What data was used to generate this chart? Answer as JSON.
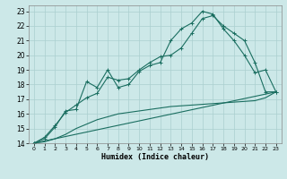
{
  "xlabel": "Humidex (Indice chaleur)",
  "bg_color": "#cce8e8",
  "grid_color": "#aacfcf",
  "line_color": "#1a6e60",
  "xlim": [
    -0.5,
    23.5
  ],
  "ylim": [
    14,
    23.4
  ],
  "xticks": [
    0,
    1,
    2,
    3,
    4,
    5,
    6,
    7,
    8,
    9,
    10,
    11,
    12,
    13,
    14,
    15,
    16,
    17,
    18,
    19,
    20,
    21,
    22,
    23
  ],
  "yticks": [
    14,
    15,
    16,
    17,
    18,
    19,
    20,
    21,
    22,
    23
  ],
  "line1_x": [
    0,
    1,
    2,
    3,
    4,
    5,
    6,
    7,
    8,
    9,
    10,
    11,
    12,
    13,
    14,
    15,
    16,
    17,
    18,
    19,
    20,
    21,
    22,
    23
  ],
  "line1_y": [
    14.0,
    14.3,
    15.1,
    16.2,
    16.3,
    18.2,
    17.8,
    19.0,
    17.8,
    18.0,
    18.9,
    19.3,
    19.5,
    21.0,
    21.8,
    22.2,
    23.0,
    22.8,
    21.8,
    21.0,
    20.0,
    18.8,
    19.0,
    17.5
  ],
  "line2_x": [
    0,
    1,
    2,
    3,
    4,
    5,
    6,
    7,
    8,
    9,
    10,
    11,
    12,
    13,
    14,
    15,
    16,
    17,
    18,
    19,
    20,
    21,
    22,
    23
  ],
  "line2_y": [
    14.0,
    14.4,
    15.2,
    16.1,
    16.6,
    17.1,
    17.4,
    18.5,
    18.3,
    18.4,
    19.0,
    19.5,
    19.9,
    20.0,
    20.5,
    21.5,
    22.5,
    22.7,
    22.0,
    21.5,
    21.0,
    19.5,
    17.5,
    17.5
  ],
  "line3_x": [
    0,
    23
  ],
  "line3_y": [
    14.0,
    17.5
  ],
  "line4_x": [
    0,
    1,
    2,
    3,
    4,
    5,
    6,
    7,
    8,
    9,
    10,
    11,
    12,
    13,
    14,
    15,
    16,
    17,
    18,
    19,
    20,
    21,
    22,
    23
  ],
  "line4_y": [
    14.0,
    14.1,
    14.3,
    14.6,
    15.0,
    15.3,
    15.6,
    15.8,
    16.0,
    16.1,
    16.2,
    16.3,
    16.4,
    16.5,
    16.55,
    16.6,
    16.65,
    16.7,
    16.75,
    16.8,
    16.85,
    16.9,
    17.1,
    17.5
  ]
}
